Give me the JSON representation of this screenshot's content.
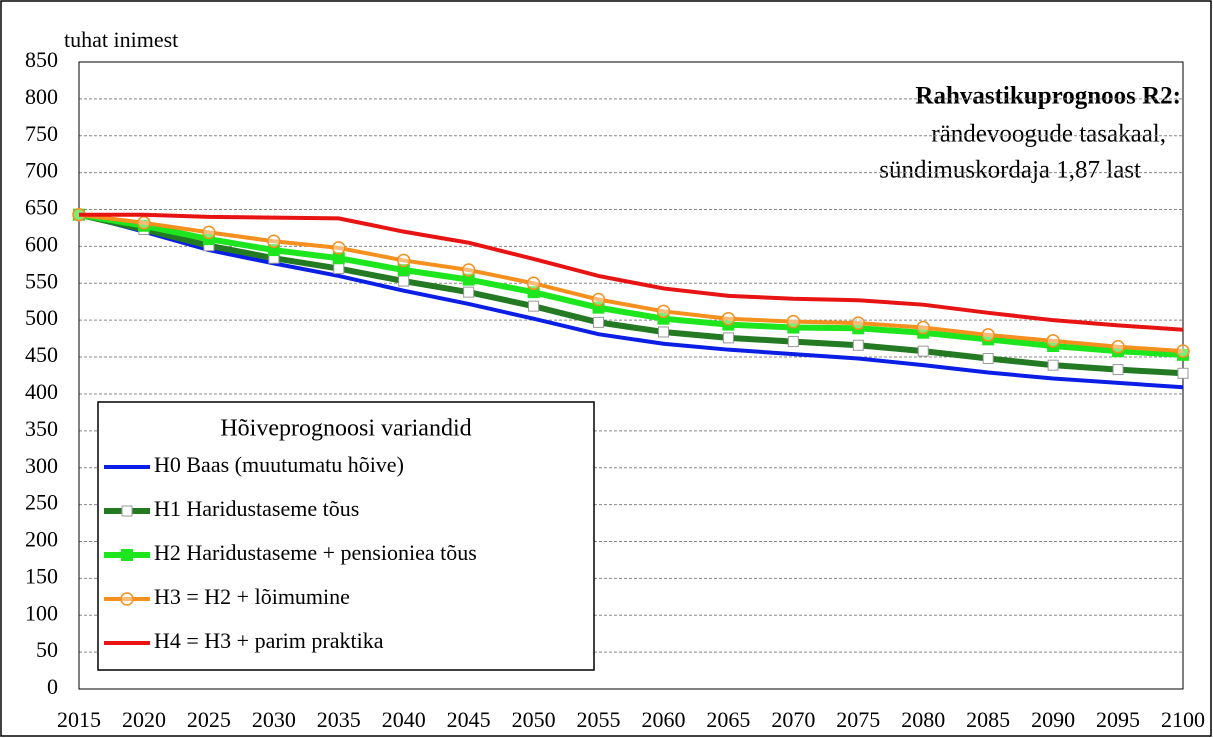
{
  "chart_data": {
    "type": "line",
    "title": "Rahvastikuprognoos R2:",
    "subtitle": [
      "rändevoogude tasakaal,",
      "sündimuskordaja 1,87 last"
    ],
    "y_label": "tuhat inimest",
    "legend_title": "Hõiveprognoosi variandid",
    "legend": "lower left",
    "grid": true,
    "x": [
      2015,
      2020,
      2025,
      2030,
      2035,
      2040,
      2045,
      2050,
      2055,
      2060,
      2065,
      2070,
      2075,
      2080,
      2085,
      2090,
      2095,
      2100
    ],
    "xlim": [
      2015,
      2100
    ],
    "ylim": [
      0,
      850
    ],
    "yticks": [
      0,
      50,
      100,
      150,
      200,
      250,
      300,
      350,
      400,
      450,
      500,
      550,
      600,
      650,
      700,
      750,
      800,
      850
    ],
    "series": [
      {
        "name": "H0 Baas (muutumatu hõive)",
        "color": "#0a1ee6",
        "marker": "none",
        "values": [
          643,
          620,
          595,
          577,
          560,
          540,
          522,
          502,
          481,
          468,
          460,
          454,
          448,
          439,
          429,
          421,
          415,
          409
        ]
      },
      {
        "name": "H1 Haridustaseme tõus",
        "color": "#237a23",
        "marker": "hollow-square",
        "values": [
          643,
          623,
          601,
          584,
          570,
          553,
          538,
          519,
          497,
          484,
          476,
          471,
          466,
          458,
          448,
          439,
          433,
          428
        ]
      },
      {
        "name": "H2 Haridustaseme + pensioniea tõus",
        "color": "#1ee61e",
        "marker": "square",
        "values": [
          643,
          628,
          610,
          595,
          584,
          568,
          555,
          538,
          517,
          502,
          494,
          490,
          489,
          483,
          474,
          465,
          458,
          453
        ]
      },
      {
        "name": "H3 = H2 + lõimumine",
        "color": "#f5901e",
        "marker": "hollow-circle",
        "values": [
          643,
          632,
          619,
          607,
          598,
          581,
          568,
          550,
          528,
          512,
          502,
          498,
          496,
          490,
          480,
          472,
          464,
          458
        ]
      },
      {
        "name": "H4 = H3 + parim praktika",
        "color": "#e81414",
        "marker": "none",
        "values": [
          643,
          643,
          640,
          639,
          638,
          620,
          605,
          583,
          560,
          543,
          533,
          529,
          527,
          521,
          510,
          500,
          493,
          487
        ]
      }
    ]
  }
}
